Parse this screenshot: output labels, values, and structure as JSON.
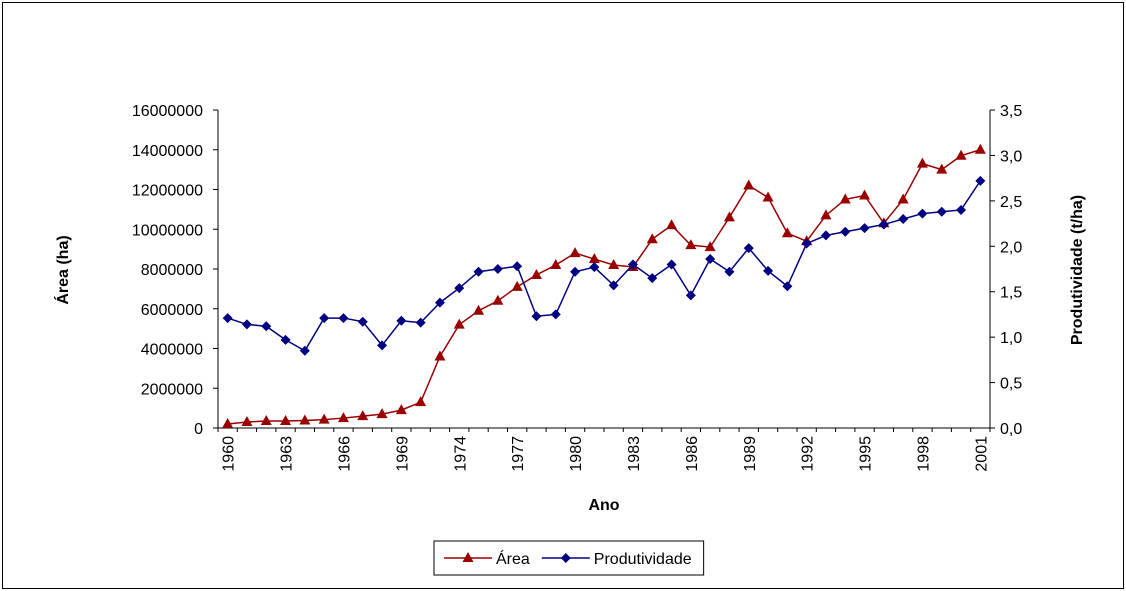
{
  "chart_data": {
    "type": "line",
    "x_label": "Ano",
    "y_label": "Área (ha)",
    "y2_label": "Produtividade (t/ha)",
    "categories": [
      "1960",
      null,
      null,
      "1963",
      null,
      null,
      "1966",
      null,
      null,
      "1969",
      null,
      null,
      "1974",
      null,
      null,
      "1977",
      null,
      null,
      "1980",
      null,
      null,
      "1983",
      null,
      null,
      "1986",
      null,
      null,
      "1989",
      null,
      null,
      "1992",
      null,
      null,
      "1995",
      null,
      null,
      "1998",
      null,
      null,
      "2001"
    ],
    "series": [
      {
        "name": "Área",
        "color": "#990000",
        "marker": "triangle",
        "values": [
          200000,
          300000,
          350000,
          350000,
          380000,
          420000,
          500000,
          600000,
          700000,
          900000,
          1300000,
          3600000,
          5200000,
          5900000,
          6400000,
          7100000,
          7700000,
          8200000,
          8800000,
          8500000,
          8200000,
          8100000,
          9500000,
          10200000,
          9200000,
          9100000,
          10600000,
          12200000,
          11600000,
          9800000,
          9400000,
          10700000,
          11500000,
          11700000,
          10300000,
          11500000,
          13300000,
          13000000,
          13700000,
          14000000
        ]
      },
      {
        "name": "Produtividade",
        "color": "#000080",
        "marker": "diamond",
        "axis": "y2",
        "values": [
          1.21,
          1.14,
          1.12,
          0.97,
          0.85,
          1.21,
          1.21,
          1.17,
          0.91,
          1.18,
          1.16,
          1.38,
          1.54,
          1.72,
          1.75,
          1.78,
          1.23,
          1.25,
          1.72,
          1.77,
          1.57,
          1.8,
          1.65,
          1.8,
          1.46,
          1.86,
          1.72,
          1.98,
          1.73,
          1.56,
          2.03,
          2.12,
          2.16,
          2.2,
          2.24,
          2.3,
          2.36,
          2.38,
          2.4,
          2.72
        ]
      }
    ],
    "ylim": [
      0,
      16000000
    ],
    "yticks": [
      0,
      2000000,
      4000000,
      6000000,
      8000000,
      10000000,
      12000000,
      14000000,
      16000000
    ],
    "y2lim": [
      0,
      3.5
    ],
    "y2ticks": [
      {
        "value": 0,
        "label": "0,0"
      },
      {
        "value": 0.5,
        "label": "0,5"
      },
      {
        "value": 1,
        "label": "1,0"
      },
      {
        "value": 1.5,
        "label": "1,5"
      },
      {
        "value": 2,
        "label": "2,0"
      },
      {
        "value": 2.5,
        "label": "2,5"
      },
      {
        "value": 3,
        "label": "3,0"
      },
      {
        "value": 3.5,
        "label": "3,5"
      }
    ],
    "legend": "bottom"
  }
}
